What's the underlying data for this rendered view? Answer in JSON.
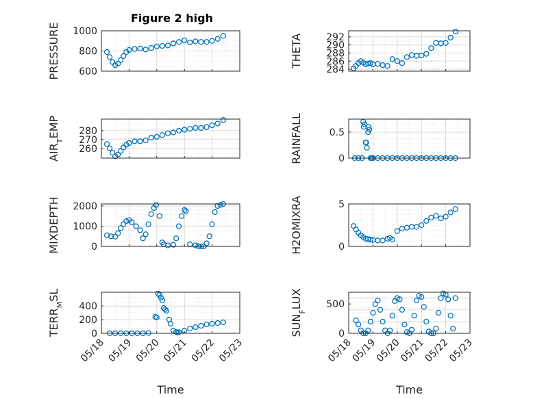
{
  "figure": {
    "title": "Figure 2 high"
  },
  "colors": {
    "marker": "#0072BD",
    "axis": "#262626",
    "grid": "#dcdcdc"
  },
  "chart_data": [
    {
      "id": "pressure",
      "type": "scatter",
      "title": "Figure 2 high",
      "ylabel": "PRESSURE",
      "xlabel": "",
      "ylim": [
        600,
        1000
      ],
      "yticks": [
        600,
        800,
        1000
      ],
      "ytick_labels": [
        "600",
        "800",
        "1000"
      ],
      "xlim": [
        18,
        23
      ],
      "xticks": [
        18,
        19,
        20,
        21,
        22,
        23
      ],
      "xtick_labels": [],
      "grid": true,
      "minor_grid": true,
      "x": [
        18.2,
        18.3,
        18.4,
        18.5,
        18.6,
        18.7,
        18.8,
        18.9,
        19.0,
        19.2,
        19.4,
        19.6,
        19.8,
        20.0,
        20.2,
        20.4,
        20.6,
        20.8,
        21.0,
        21.2,
        21.4,
        21.6,
        21.8,
        22.0,
        22.2,
        22.4
      ],
      "y": [
        790,
        740,
        690,
        660,
        675,
        710,
        750,
        790,
        810,
        820,
        825,
        815,
        830,
        845,
        850,
        855,
        875,
        890,
        905,
        885,
        895,
        890,
        890,
        900,
        920,
        950
      ]
    },
    {
      "id": "theta",
      "type": "scatter",
      "ylabel": "THETA",
      "xlabel": "",
      "ylim": [
        283.5,
        293.5
      ],
      "yticks": [
        284,
        286,
        288,
        290,
        292
      ],
      "ytick_labels": [
        "284",
        "286",
        "288",
        "290",
        "292"
      ],
      "xlim": [
        18,
        23
      ],
      "xticks": [
        18,
        19,
        20,
        21,
        22,
        23
      ],
      "xtick_labels": [],
      "grid": true,
      "minor_grid": true,
      "x": [
        18.2,
        18.3,
        18.4,
        18.5,
        18.6,
        18.7,
        18.8,
        18.9,
        19.0,
        19.2,
        19.4,
        19.6,
        19.8,
        20.0,
        20.2,
        20.4,
        20.6,
        20.8,
        21.0,
        21.2,
        21.4,
        21.6,
        21.8,
        22.0,
        22.2,
        22.4
      ],
      "y": [
        284.2,
        284.8,
        285.5,
        286.0,
        285.6,
        285.2,
        285.4,
        285.5,
        285.2,
        285.3,
        285.0,
        284.8,
        286.5,
        286.0,
        285.5,
        287.0,
        287.5,
        287.3,
        287.4,
        287.8,
        289.2,
        290.5,
        290.4,
        290.5,
        291.8,
        293.3
      ]
    },
    {
      "id": "air_temp",
      "type": "scatter",
      "ylabel": "AIR_TEMP",
      "xlabel": "",
      "ylim": [
        249,
        293
      ],
      "yticks": [
        260,
        270,
        280
      ],
      "ytick_labels": [
        "260",
        "270",
        "280"
      ],
      "xlim": [
        18,
        23
      ],
      "xticks": [
        18,
        19,
        20,
        21,
        22,
        23
      ],
      "xtick_labels": [],
      "grid": true,
      "minor_grid": true,
      "x": [
        18.2,
        18.3,
        18.4,
        18.5,
        18.6,
        18.7,
        18.8,
        18.9,
        19.0,
        19.2,
        19.4,
        19.6,
        19.8,
        20.0,
        20.2,
        20.4,
        20.6,
        20.8,
        21.0,
        21.2,
        21.4,
        21.6,
        21.8,
        22.0,
        22.2,
        22.4
      ],
      "y": [
        265,
        260,
        255,
        251,
        253,
        257,
        261,
        264,
        266,
        268,
        268,
        269,
        272,
        273,
        275,
        277,
        278,
        280,
        281,
        282,
        283,
        283,
        284,
        286,
        288,
        292
      ]
    },
    {
      "id": "rainfall",
      "type": "scatter",
      "ylabel": "RAINFALL",
      "xlabel": "",
      "ylim": [
        0,
        0.75
      ],
      "yticks": [
        0,
        0.5
      ],
      "ytick_labels": [
        "0",
        "0.5"
      ],
      "xlim": [
        18,
        23
      ],
      "xticks": [
        18,
        19,
        20,
        21,
        22,
        23
      ],
      "xtick_labels": [],
      "grid": true,
      "minor_grid": true,
      "x": [
        18.25,
        18.4,
        18.55,
        18.6,
        18.62,
        18.65,
        18.7,
        18.72,
        18.75,
        18.8,
        18.82,
        18.85,
        18.9,
        18.95,
        19.0,
        19.2,
        19.4,
        19.6,
        19.8,
        20.0,
        20.2,
        20.4,
        20.6,
        20.8,
        21.0,
        21.2,
        21.4,
        21.6,
        21.8,
        22.0,
        22.2,
        22.4
      ],
      "y": [
        0,
        0,
        0,
        0.7,
        0.6,
        0.65,
        0.3,
        0.3,
        0.2,
        0.5,
        0.6,
        0.55,
        0,
        0,
        0,
        0,
        0,
        0,
        0,
        0,
        0,
        0,
        0,
        0,
        0,
        0,
        0,
        0,
        0,
        0,
        0,
        0
      ]
    },
    {
      "id": "mixdepth",
      "type": "scatter",
      "ylabel": "MIXDEPTH",
      "xlabel": "",
      "ylim": [
        0,
        2100
      ],
      "yticks": [
        0,
        1000,
        2000
      ],
      "ytick_labels": [
        "0",
        "1000",
        "2000"
      ],
      "xlim": [
        18,
        23
      ],
      "xticks": [
        18,
        19,
        20,
        21,
        22,
        23
      ],
      "xtick_labels": [],
      "grid": true,
      "minor_grid": true,
      "x": [
        18.2,
        18.35,
        18.5,
        18.6,
        18.7,
        18.8,
        18.9,
        19.0,
        19.1,
        19.25,
        19.4,
        19.5,
        19.6,
        19.7,
        19.8,
        19.9,
        19.98,
        20.1,
        20.2,
        20.25,
        20.4,
        20.6,
        20.7,
        20.8,
        20.9,
        21.0,
        21.05,
        21.2,
        21.4,
        21.5,
        21.6,
        21.7,
        21.8,
        21.9,
        22.0,
        22.1,
        22.2,
        22.3,
        22.4
      ],
      "y": [
        550,
        500,
        480,
        650,
        900,
        1100,
        1250,
        1300,
        1200,
        1000,
        800,
        400,
        600,
        1100,
        1600,
        1900,
        2050,
        1500,
        200,
        100,
        50,
        80,
        400,
        1000,
        1500,
        1800,
        1750,
        100,
        50,
        10,
        0,
        0,
        150,
        500,
        1100,
        1700,
        2000,
        2050,
        2100
      ]
    },
    {
      "id": "h2omixra",
      "type": "scatter",
      "ylabel": "H2OMIXRA",
      "xlabel": "",
      "ylim": [
        0,
        5
      ],
      "yticks": [
        0,
        5
      ],
      "ytick_labels": [
        "0",
        "5"
      ],
      "xlim": [
        18,
        23
      ],
      "xticks": [
        18,
        19,
        20,
        21,
        22,
        23
      ],
      "xtick_labels": [],
      "grid": true,
      "minor_grid": true,
      "x": [
        18.2,
        18.3,
        18.4,
        18.5,
        18.6,
        18.7,
        18.8,
        18.9,
        19.0,
        19.2,
        19.4,
        19.6,
        19.7,
        19.8,
        20.0,
        20.2,
        20.4,
        20.6,
        20.8,
        21.0,
        21.2,
        21.4,
        21.6,
        21.8,
        22.0,
        22.2,
        22.4
      ],
      "y": [
        2.4,
        2.0,
        1.6,
        1.3,
        1.1,
        0.9,
        0.85,
        0.8,
        0.75,
        0.7,
        0.7,
        0.9,
        1.0,
        0.8,
        1.8,
        2.1,
        2.2,
        2.3,
        2.3,
        2.5,
        3.0,
        3.4,
        3.6,
        3.3,
        3.5,
        4.0,
        4.4
      ]
    },
    {
      "id": "terr_msl",
      "type": "scatter",
      "ylabel": "TERR_MSL",
      "xlabel": "Time",
      "ylim": [
        0,
        600
      ],
      "yticks": [
        0,
        200,
        400
      ],
      "ytick_labels": [
        "0",
        "200",
        "400"
      ],
      "xlim": [
        18,
        23
      ],
      "xticks": [
        18,
        19,
        20,
        21,
        22,
        23
      ],
      "xtick_labels": [
        "05/18",
        "05/19",
        "05/20",
        "05/21",
        "05/22",
        "05/23"
      ],
      "grid": true,
      "minor_grid": true,
      "x": [
        18.3,
        18.5,
        18.7,
        18.9,
        19.1,
        19.3,
        19.5,
        19.7,
        19.95,
        20.0,
        20.05,
        20.1,
        20.15,
        20.2,
        20.25,
        20.3,
        20.35,
        20.45,
        20.5,
        20.6,
        20.7,
        20.75,
        20.8,
        21.0,
        21.2,
        21.4,
        21.6,
        21.8,
        22.0,
        22.2,
        22.4
      ],
      "y": [
        0,
        0,
        0,
        0,
        0,
        0,
        0,
        5,
        240,
        230,
        580,
        560,
        520,
        480,
        370,
        350,
        330,
        200,
        140,
        40,
        20,
        10,
        15,
        40,
        70,
        90,
        110,
        130,
        140,
        150,
        160
      ]
    },
    {
      "id": "sun_flux",
      "type": "scatter",
      "ylabel": "SUN_FLUX",
      "xlabel": "Time",
      "ylim": [
        0,
        700
      ],
      "yticks": [
        0,
        200,
        400,
        600
      ],
      "ytick_labels": [
        "0",
        "",
        "",
        ""
      ],
      "yticks_labeled": [
        0,
        500
      ],
      "ytick_labels_shown": [
        "0",
        "500"
      ],
      "xlim": [
        18,
        23
      ],
      "xticks": [
        18,
        19,
        20,
        21,
        22,
        23
      ],
      "xtick_labels": [
        "05/18",
        "05/19",
        "05/20",
        "05/21",
        "05/22",
        "05/23"
      ],
      "grid": true,
      "minor_grid": true,
      "x": [
        18.3,
        18.4,
        18.5,
        18.6,
        18.7,
        18.8,
        18.9,
        19.0,
        19.1,
        19.2,
        19.3,
        19.4,
        19.5,
        19.6,
        19.7,
        19.8,
        19.9,
        20.0,
        20.1,
        20.2,
        20.3,
        20.4,
        20.5,
        20.6,
        20.7,
        20.8,
        20.9,
        21.0,
        21.1,
        21.2,
        21.3,
        21.4,
        21.5,
        21.6,
        21.7,
        21.8,
        21.9,
        22.0,
        22.1,
        22.2,
        22.3,
        22.4
      ],
      "y": [
        220,
        150,
        50,
        0,
        0,
        50,
        200,
        350,
        500,
        560,
        400,
        200,
        50,
        0,
        50,
        300,
        550,
        600,
        580,
        400,
        150,
        20,
        0,
        60,
        300,
        560,
        640,
        620,
        450,
        200,
        30,
        0,
        0,
        80,
        350,
        600,
        680,
        660,
        580,
        300,
        80,
        600
      ]
    }
  ]
}
